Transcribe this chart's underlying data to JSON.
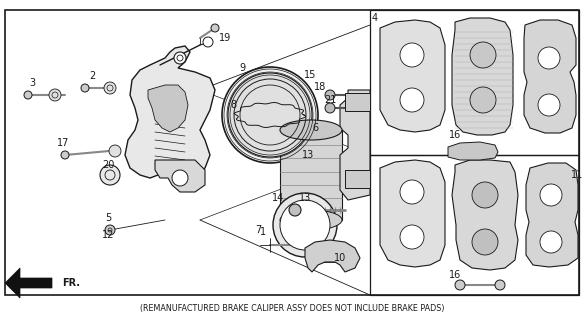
{
  "footnote": "(REMANUFACTURED BRAKE CALIPER ASSY DOES NOT INCLUDE BRAKE PADS)",
  "bg_color": "#ffffff",
  "line_color": "#1a1a1a",
  "text_color": "#1a1a1a",
  "fig_width": 5.85,
  "fig_height": 3.2,
  "dpi": 100
}
